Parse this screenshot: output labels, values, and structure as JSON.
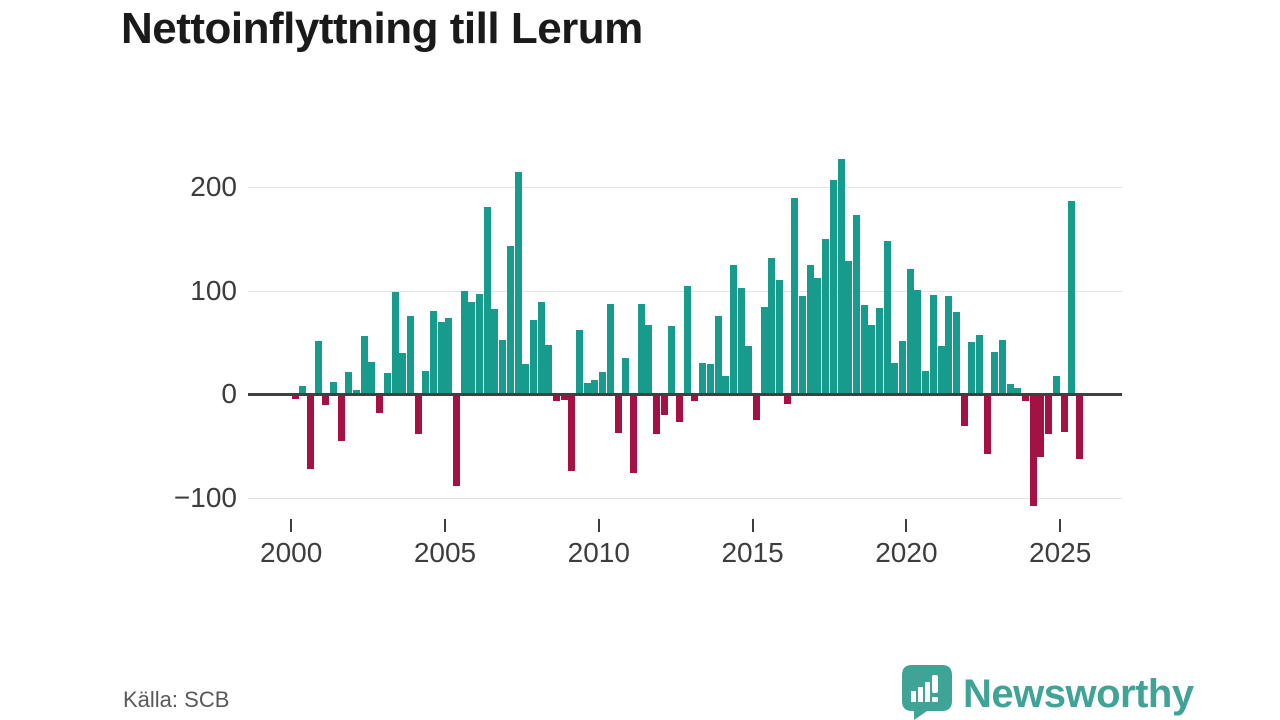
{
  "title": "Nettoinflyttning till Lerum",
  "source": "Källa: SCB",
  "branding": {
    "name": "Newsworthy",
    "color": "#3fa396"
  },
  "colors": {
    "positive_bar": "#169b8d",
    "negative_bar": "#a41245",
    "grid": "#e2e2e2",
    "zero_line": "#404040",
    "axis_text": "#3d3d3d",
    "title_text": "#1a1a1a",
    "source_text": "#595959"
  },
  "chart_data": {
    "type": "bar",
    "title": "Nettoinflyttning till Lerum",
    "frequency": "quarterly",
    "start_period": "2000 Q1",
    "end_period": "2025 Q3",
    "grid": true,
    "legend": "none",
    "y_ticks": [
      200,
      100,
      0,
      -100
    ],
    "y_tick_labels": [
      "200",
      "100",
      "0",
      "−100"
    ],
    "x_tick_years": [
      2000,
      2005,
      2010,
      2015,
      2020,
      2025
    ],
    "x_tick_labels": [
      "2000",
      "2005",
      "2010",
      "2015",
      "2020",
      "2025"
    ],
    "ylim": [
      -130,
      245
    ],
    "values": [
      -4,
      8,
      -71,
      51,
      -10,
      12,
      -44,
      21,
      4,
      56,
      31,
      -17,
      20,
      99,
      40,
      75,
      -38,
      22,
      80,
      70,
      73,
      -88,
      100,
      89,
      97,
      181,
      82,
      52,
      143,
      215,
      29,
      72,
      89,
      47,
      -6,
      -5,
      -73,
      62,
      11,
      14,
      21,
      87,
      -37,
      35,
      -75,
      87,
      67,
      -38,
      -19,
      66,
      -26,
      104,
      -6,
      30,
      29,
      75,
      17,
      125,
      102,
      46,
      -24,
      84,
      131,
      110,
      -9,
      189,
      95,
      125,
      112,
      150,
      207,
      227,
      129,
      173,
      86,
      67,
      83,
      148,
      30,
      51,
      121,
      101,
      22,
      96,
      46,
      95,
      79,
      -30,
      50,
      57,
      -57,
      41,
      52,
      10,
      6,
      -6,
      -107,
      -60,
      -38,
      17,
      -36,
      187,
      -62
    ]
  }
}
